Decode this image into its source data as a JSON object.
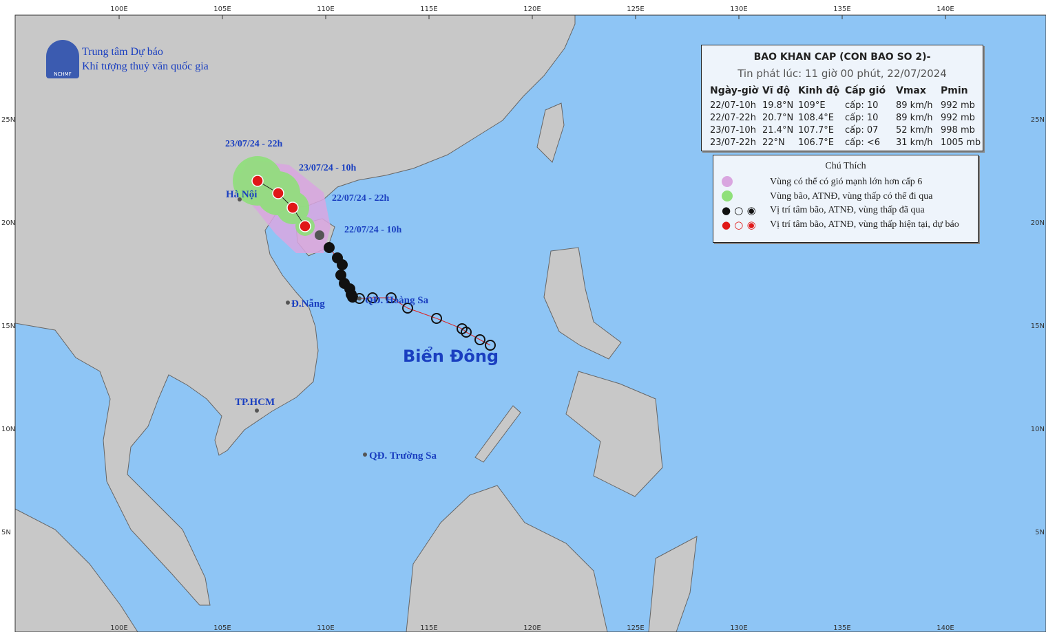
{
  "agency": {
    "line1": "Trung tâm Dự báo",
    "line2": "Khí tượng thuỷ văn quốc gia",
    "logo": "NCHMF"
  },
  "bulletin": {
    "title": "BAO KHAN CAP (CON BAO SO 2)-",
    "issued": "Tin phát lúc: 11 giờ 00 phút, 22/07/2024",
    "columns": [
      "Ngày-giờ",
      "Vĩ độ",
      "Kinh độ",
      "Cấp gió",
      "Vmax",
      "Pmin"
    ],
    "rows": [
      [
        "22/07-10h",
        "19.8°N",
        "109°E",
        "cấp: 10",
        "89 km/h",
        "992 mb"
      ],
      [
        "22/07-22h",
        "20.7°N",
        "108.4°E",
        "cấp: 10",
        "89 km/h",
        "992 mb"
      ],
      [
        "23/07-10h",
        "21.4°N",
        "107.7°E",
        "cấp: 07",
        "52 km/h",
        "998 mb"
      ],
      [
        "23/07-22h",
        "22°N",
        "106.7°E",
        "cấp: <6",
        "31 km/h",
        "1005 mb"
      ]
    ]
  },
  "legend": {
    "title": "Chú Thích",
    "items": [
      "Vùng có thể có gió mạnh lớn hơn cấp 6",
      "Vùng bão, ATNĐ, vùng thấp có thể đi qua",
      "Vị trí tâm bão, ATNĐ, vùng thấp đã qua",
      "Vị trí tâm bão, ATNĐ, vùng thấp hiện tại, dự báo"
    ]
  },
  "axes": {
    "lon": [
      "100E",
      "105E",
      "110E",
      "115E",
      "120E",
      "125E",
      "130E",
      "135E",
      "140E"
    ],
    "lat": [
      "25N",
      "20N",
      "15N",
      "10N",
      "5N"
    ]
  },
  "places": [
    "Hà Nội",
    "Đ.Nẵng",
    "TP.HCM",
    "QĐ. Hoàng Sa",
    "QĐ. Trường Sa",
    "Biển Đông"
  ],
  "track_labels": [
    "23/07/24 - 22h",
    "23/07/24 - 10h",
    "22/07/24 - 22h",
    "22/07/24 - 10h"
  ]
}
